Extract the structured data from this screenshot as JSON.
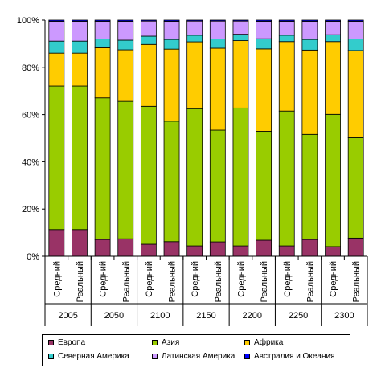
{
  "chart_data": {
    "type": "bar",
    "stacked": true,
    "percent": true,
    "ylim": [
      0,
      100
    ],
    "yticks": [
      "0%",
      "20%",
      "40%",
      "60%",
      "80%",
      "100%"
    ],
    "grid": false,
    "legend_position": "bottom",
    "groups": [
      "2005",
      "2050",
      "2100",
      "2150",
      "2200",
      "2250",
      "2300"
    ],
    "subcategories": [
      "Средний",
      "Реальный"
    ],
    "categories": [
      "2005 Средний",
      "2005 Реальный",
      "2050 Средний",
      "2050 Реальный",
      "2100 Средний",
      "2100 Реальный",
      "2150 Средний",
      "2150 Реальный",
      "2200 Средний",
      "2200 Реальный",
      "2250 Средний",
      "2250 Реальный",
      "2300 Средний",
      "2300 Реальный"
    ],
    "series": [
      {
        "name": "Европа",
        "color": "#993366",
        "values": [
          11.3,
          11.3,
          7.1,
          7.4,
          5.1,
          6.2,
          4.4,
          6.1,
          4.4,
          6.8,
          4.4,
          7.1,
          4.1,
          7.7
        ]
      },
      {
        "name": "Азия",
        "color": "#99CC00",
        "values": [
          60.8,
          60.8,
          60.0,
          58.2,
          58.4,
          51.0,
          58.1,
          47.3,
          58.4,
          46.1,
          57.1,
          44.5,
          56.0,
          42.5
        ]
      },
      {
        "name": "Африка",
        "color": "#FFCC00",
        "values": [
          13.9,
          13.9,
          21.2,
          21.8,
          26.2,
          30.5,
          28.3,
          34.7,
          28.5,
          34.9,
          29.4,
          35.7,
          30.8,
          36.9
        ]
      },
      {
        "name": "Северная Америка",
        "color": "#33CCCC",
        "values": [
          5.1,
          5.1,
          3.7,
          4.1,
          3.5,
          4.1,
          2.8,
          3.9,
          2.7,
          4.3,
          2.7,
          4.5,
          2.9,
          4.9
        ]
      },
      {
        "name": "Латинская Америка",
        "color": "#CC99FF",
        "values": [
          8.4,
          8.4,
          7.5,
          8.0,
          6.4,
          7.7,
          6.0,
          7.6,
          5.6,
          7.4,
          5.9,
          7.7,
          5.7,
          7.5
        ]
      },
      {
        "name": "Австралия и Океания",
        "color": "#0000FF",
        "values": [
          0.5,
          0.5,
          0.5,
          0.5,
          0.4,
          0.5,
          0.4,
          0.4,
          0.4,
          0.5,
          0.5,
          0.5,
          0.5,
          0.5
        ]
      }
    ]
  }
}
